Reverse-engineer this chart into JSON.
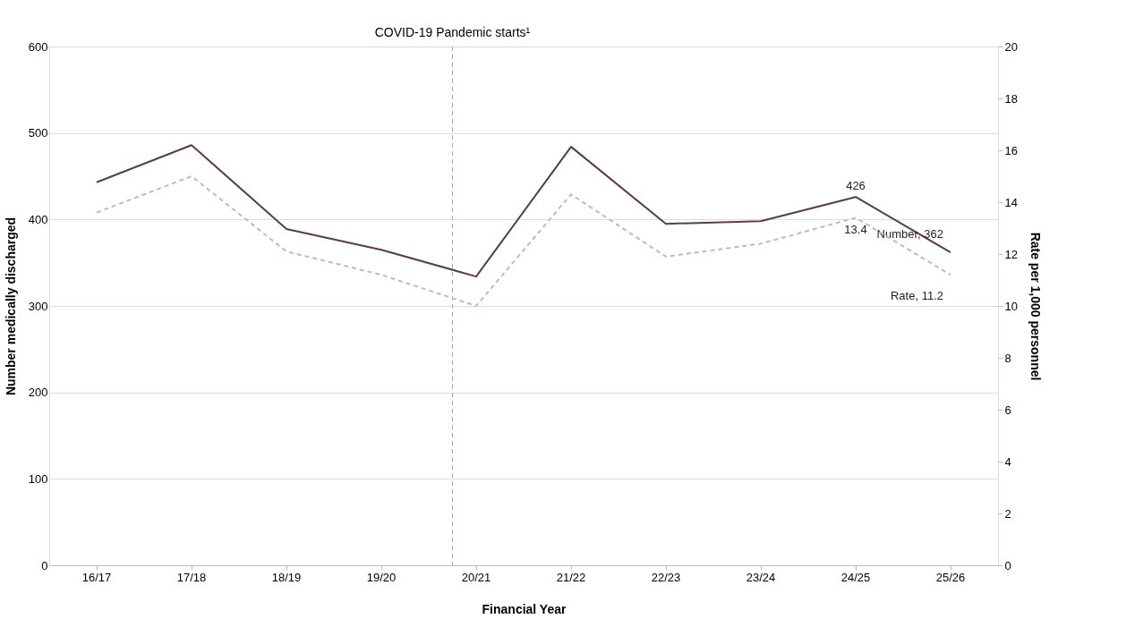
{
  "chart_data": {
    "type": "line",
    "xlabel": "Financial Year",
    "ylabel": "Number medically discharged",
    "y2label": "Rate per 1,000 personnel",
    "categories": [
      "16/17",
      "17/18",
      "18/19",
      "19/20",
      "20/21",
      "21/22",
      "22/23",
      "23/24",
      "24/25",
      "25/26"
    ],
    "series": [
      {
        "color": "#5c3a4e",
        "line_style": "solid",
        "values": [
          443,
          486,
          389,
          365,
          334,
          484,
          395,
          398,
          426,
          362
        ],
        "value_labels": [
          null,
          null,
          null,
          null,
          null,
          null,
          null,
          null,
          "426",
          "Number, 362"
        ]
      },
      {
        "color": "#c9b6bd",
        "line_style": "dashed",
        "axis": "y2",
        "values": [
          13.6,
          15.0,
          12.1,
          11.2,
          10.0,
          14.3,
          11.9,
          12.4,
          13.4,
          11.2
        ],
        "value_labels": [
          null,
          null,
          null,
          null,
          null,
          null,
          null,
          null,
          "13.4",
          "Rate, 11.2"
        ]
      }
    ],
    "ylim": [
      0,
      600
    ],
    "yticks": [
      0,
      100,
      200,
      300,
      400,
      500,
      600
    ],
    "y2lim": [
      0,
      20
    ],
    "y2ticks": [
      0,
      2,
      4,
      6,
      8,
      10,
      12,
      14,
      16,
      18,
      20
    ],
    "ref_lines": [
      {
        "axis": "x",
        "value": "20/21",
        "label": "COVID-19 Pandemic starts¹",
        "color": "#aaaaaa",
        "line_style": "dashed"
      }
    ],
    "grid": "y",
    "marker": "none"
  }
}
